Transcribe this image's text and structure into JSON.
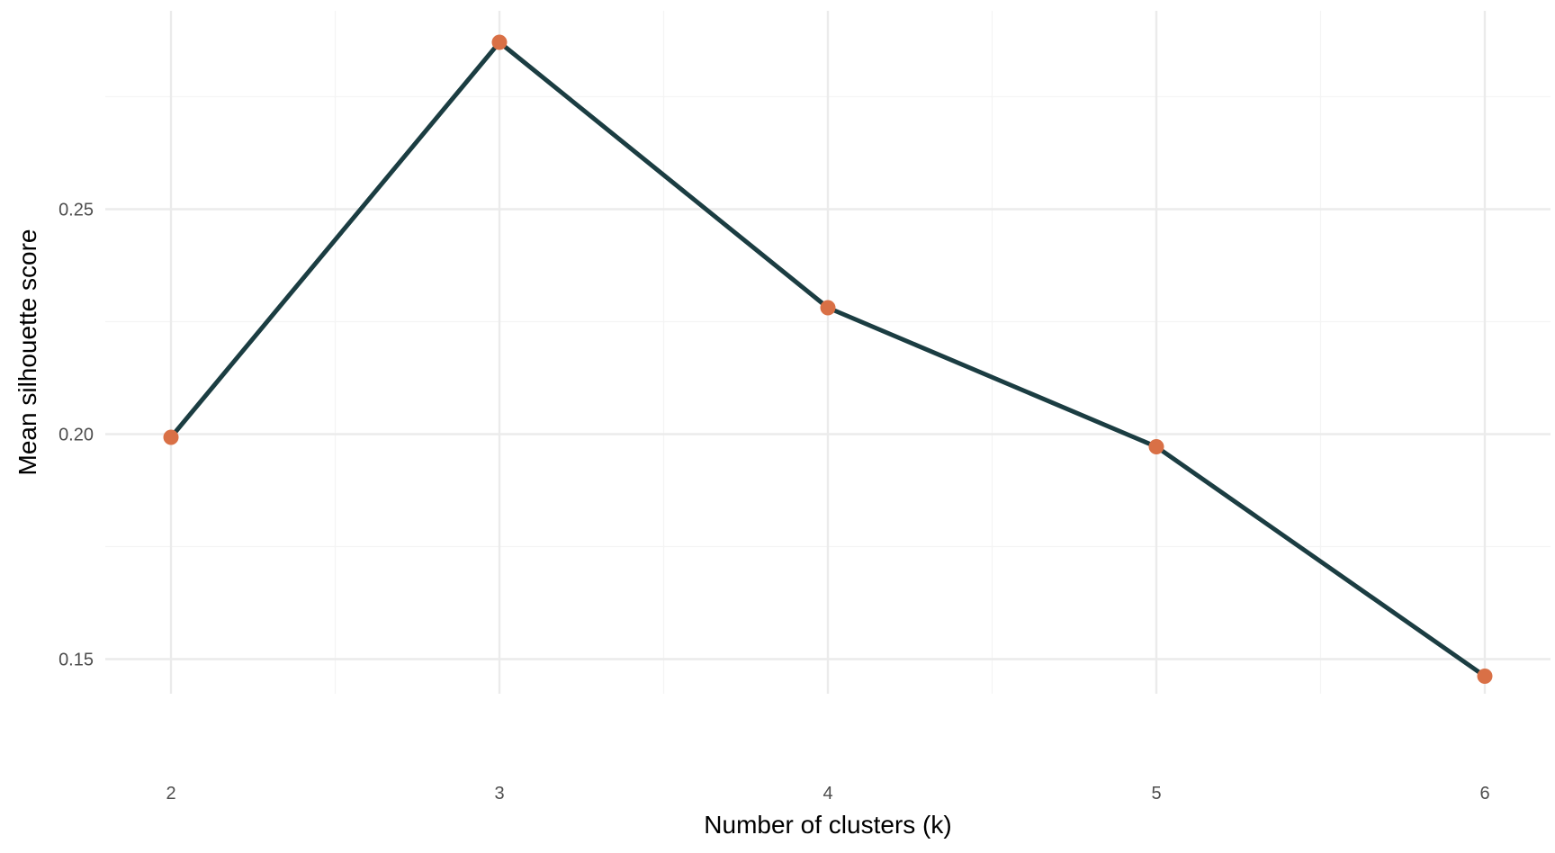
{
  "chart_data": {
    "type": "line",
    "title": "",
    "xlabel": "Number of clusters (k)",
    "ylabel": "Mean silhouette score",
    "x": [
      2,
      3,
      4,
      5,
      6
    ],
    "series": [
      {
        "values": [
          0.1993,
          0.2871,
          0.2281,
          0.1972,
          0.1462
        ]
      }
    ],
    "xlim": [
      1.8,
      6.2
    ],
    "ylim": [
      0.1423,
      0.2941
    ],
    "xticks": [
      2,
      3,
      4,
      5,
      6
    ],
    "xtick_labels": [
      "2",
      "3",
      "4",
      "5",
      "6"
    ],
    "yticks": [
      0.15,
      0.2,
      0.25
    ],
    "ytick_labels": [
      "0.15",
      "0.20",
      "0.25"
    ],
    "x_minor_ticks": [
      2.5,
      3.5,
      4.5,
      5.5
    ],
    "y_minor_ticks": [
      0.175,
      0.225,
      0.275
    ],
    "grid": true,
    "legend": "none",
    "colors": {
      "line": "#1b3d42",
      "marker": "#d97046",
      "grid_major": "#ebebeb",
      "grid_minor": "#f4f4f4",
      "tick_text": "#4d4d4d",
      "axis_title": "#000000"
    }
  }
}
